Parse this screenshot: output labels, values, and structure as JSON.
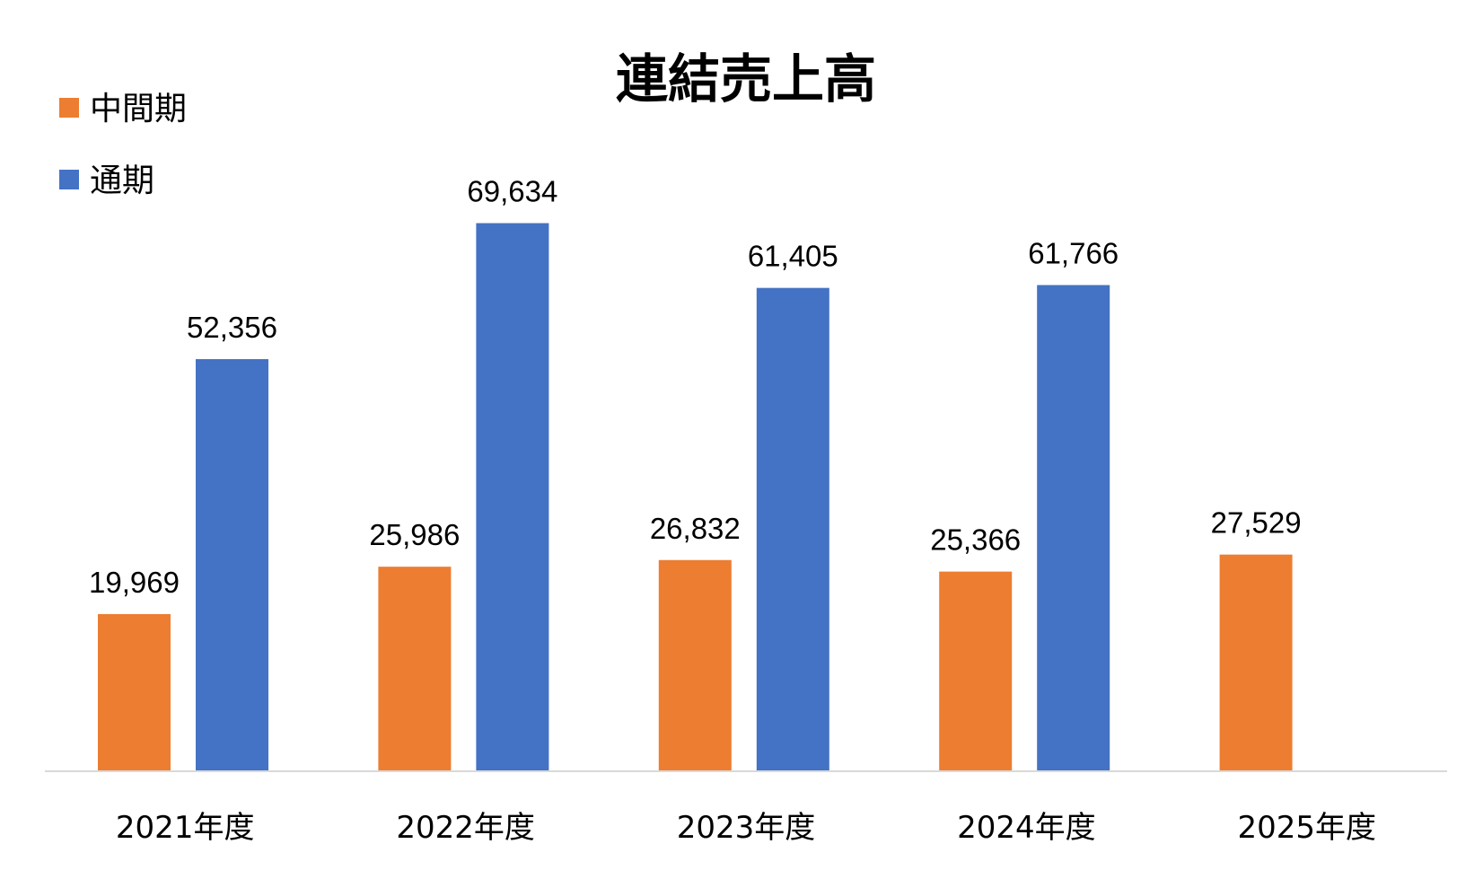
{
  "chart_data": {
    "type": "bar",
    "title": "連結売上高",
    "categories": [
      "2021年度",
      "2022年度",
      "2023年度",
      "2024年度",
      "2025年度"
    ],
    "series": [
      {
        "name": "中間期",
        "color": "#ED7D31",
        "values": [
          19969,
          25986,
          26832,
          25366,
          27529
        ],
        "labels": [
          "19,969",
          "25,986",
          "26,832",
          "25,366",
          "27,529"
        ]
      },
      {
        "name": "通期",
        "color": "#4472C4",
        "values": [
          52356,
          69634,
          61405,
          61766,
          null
        ],
        "labels": [
          "52,356",
          "69,634",
          "61,405",
          "61,766",
          null
        ]
      }
    ],
    "xlabel": "",
    "ylabel": "",
    "ylim": [
      0,
      80000
    ],
    "grid": false,
    "legend_position": "top-left",
    "axis_color": "#D9D9D9"
  }
}
